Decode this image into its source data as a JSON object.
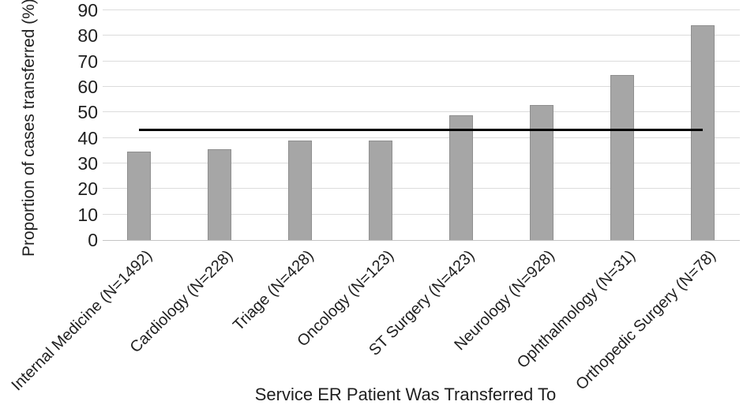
{
  "chart_data": {
    "type": "bar",
    "title": "",
    "xlabel": "Service ER Patient Was Transferred To",
    "ylabel": "Proportion of cases transferred (%)",
    "categories": [
      "Internal Medicine (N=1492)",
      "Cardiology (N=228)",
      "Triage (N=428)",
      "Oncology (N=123)",
      "ST Surgery (N=423)",
      "Neurology (N=928)",
      "Ophthalmology (N=31)",
      "Orthopedic Surgery (N=78)"
    ],
    "values": [
      34.5,
      35.5,
      39,
      39,
      49,
      53,
      64.5,
      84
    ],
    "ylim": [
      0,
      90
    ],
    "yticks": [
      0,
      10,
      20,
      30,
      40,
      50,
      60,
      70,
      80,
      90
    ],
    "grid": "horizontal-light",
    "legend": "none",
    "reference_line": {
      "value": 43,
      "spans": "from first bar center to last bar center"
    },
    "colors": {
      "bar_fill": "#a6a6a6",
      "bar_border": "#8f8f8f",
      "gridline": "#dcdcdc",
      "axis_baseline": "#c4c4c4",
      "reference_line": "#000000",
      "text": "#1f1f1f"
    }
  }
}
